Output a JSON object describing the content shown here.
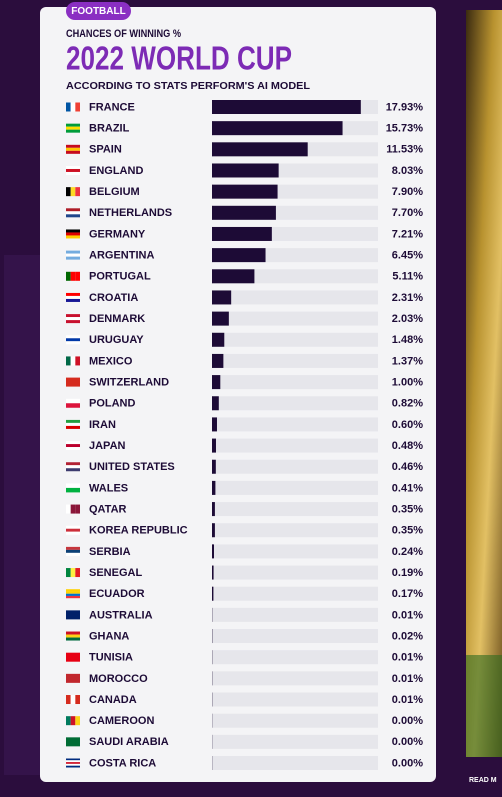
{
  "chart_data": {
    "type": "bar",
    "orientation": "horizontal",
    "tag": "FOOTBALL",
    "kicker": "CHANCES OF WINNING %",
    "title": "2022 WORLD CUP",
    "subtitle": "ACCORDING TO STATS PERFORM'S AI MODEL",
    "categories": [
      "FRANCE",
      "BRAZIL",
      "SPAIN",
      "ENGLAND",
      "BELGIUM",
      "NETHERLANDS",
      "GERMANY",
      "ARGENTINA",
      "PORTUGAL",
      "CROATIA",
      "DENMARK",
      "URUGUAY",
      "MEXICO",
      "SWITZERLAND",
      "POLAND",
      "IRAN",
      "JAPAN",
      "UNITED STATES",
      "WALES",
      "QATAR",
      "KOREA REPUBLIC",
      "SERBIA",
      "SENEGAL",
      "ECUADOR",
      "AUSTRALIA",
      "GHANA",
      "TUNISIA",
      "MOROCCO",
      "CANADA",
      "CAMEROON",
      "SAUDI ARABIA",
      "COSTA RICA"
    ],
    "values": [
      17.93,
      15.73,
      11.53,
      8.03,
      7.9,
      7.7,
      7.21,
      6.45,
      5.11,
      2.31,
      2.03,
      1.48,
      1.37,
      1.0,
      0.82,
      0.6,
      0.48,
      0.46,
      0.41,
      0.35,
      0.35,
      0.24,
      0.19,
      0.17,
      0.01,
      0.02,
      0.01,
      0.01,
      0.01,
      0.0,
      0.0,
      0.0
    ],
    "value_labels": [
      "17.93%",
      "15.73%",
      "11.53%",
      "8.03%",
      "7.90%",
      "7.70%",
      "7.21%",
      "6.45%",
      "5.11%",
      "2.31%",
      "2.03%",
      "1.48%",
      "1.37%",
      "1.00%",
      "0.82%",
      "0.60%",
      "0.48%",
      "0.46%",
      "0.41%",
      "0.35%",
      "0.35%",
      "0.24%",
      "0.19%",
      "0.17%",
      "0.01%",
      "0.02%",
      "0.01%",
      "0.01%",
      "0.01%",
      "0.00%",
      "0.00%",
      "0.00%"
    ],
    "color": "#1d0b36",
    "xlim": [
      0,
      20
    ]
  },
  "page": {
    "link": "READ M"
  }
}
